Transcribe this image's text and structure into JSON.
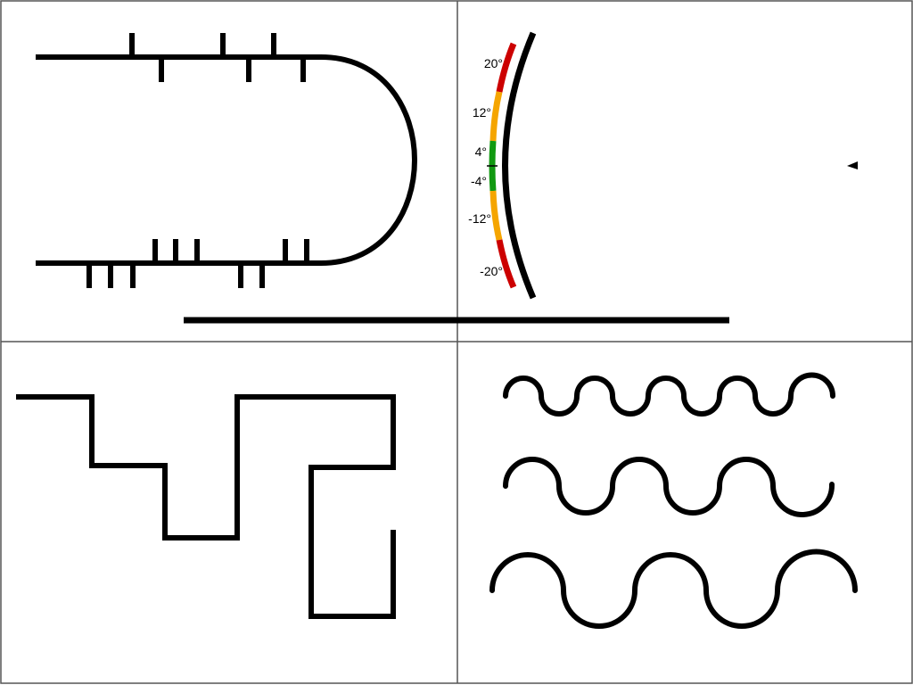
{
  "colors": {
    "background": "#ffffff",
    "grid_line": "#555555",
    "stroke": "#000000",
    "danger": "#cc0000",
    "warning": "#f5a500",
    "ok": "#119911"
  },
  "gauge": {
    "labels": [
      "20°",
      "12°",
      "4°",
      "-4°",
      "-12°",
      "-20°"
    ],
    "zones": [
      "danger",
      "warning",
      "ok",
      "warning",
      "danger"
    ]
  },
  "indicator": {
    "icon": "left-pointing-triangle-icon"
  }
}
